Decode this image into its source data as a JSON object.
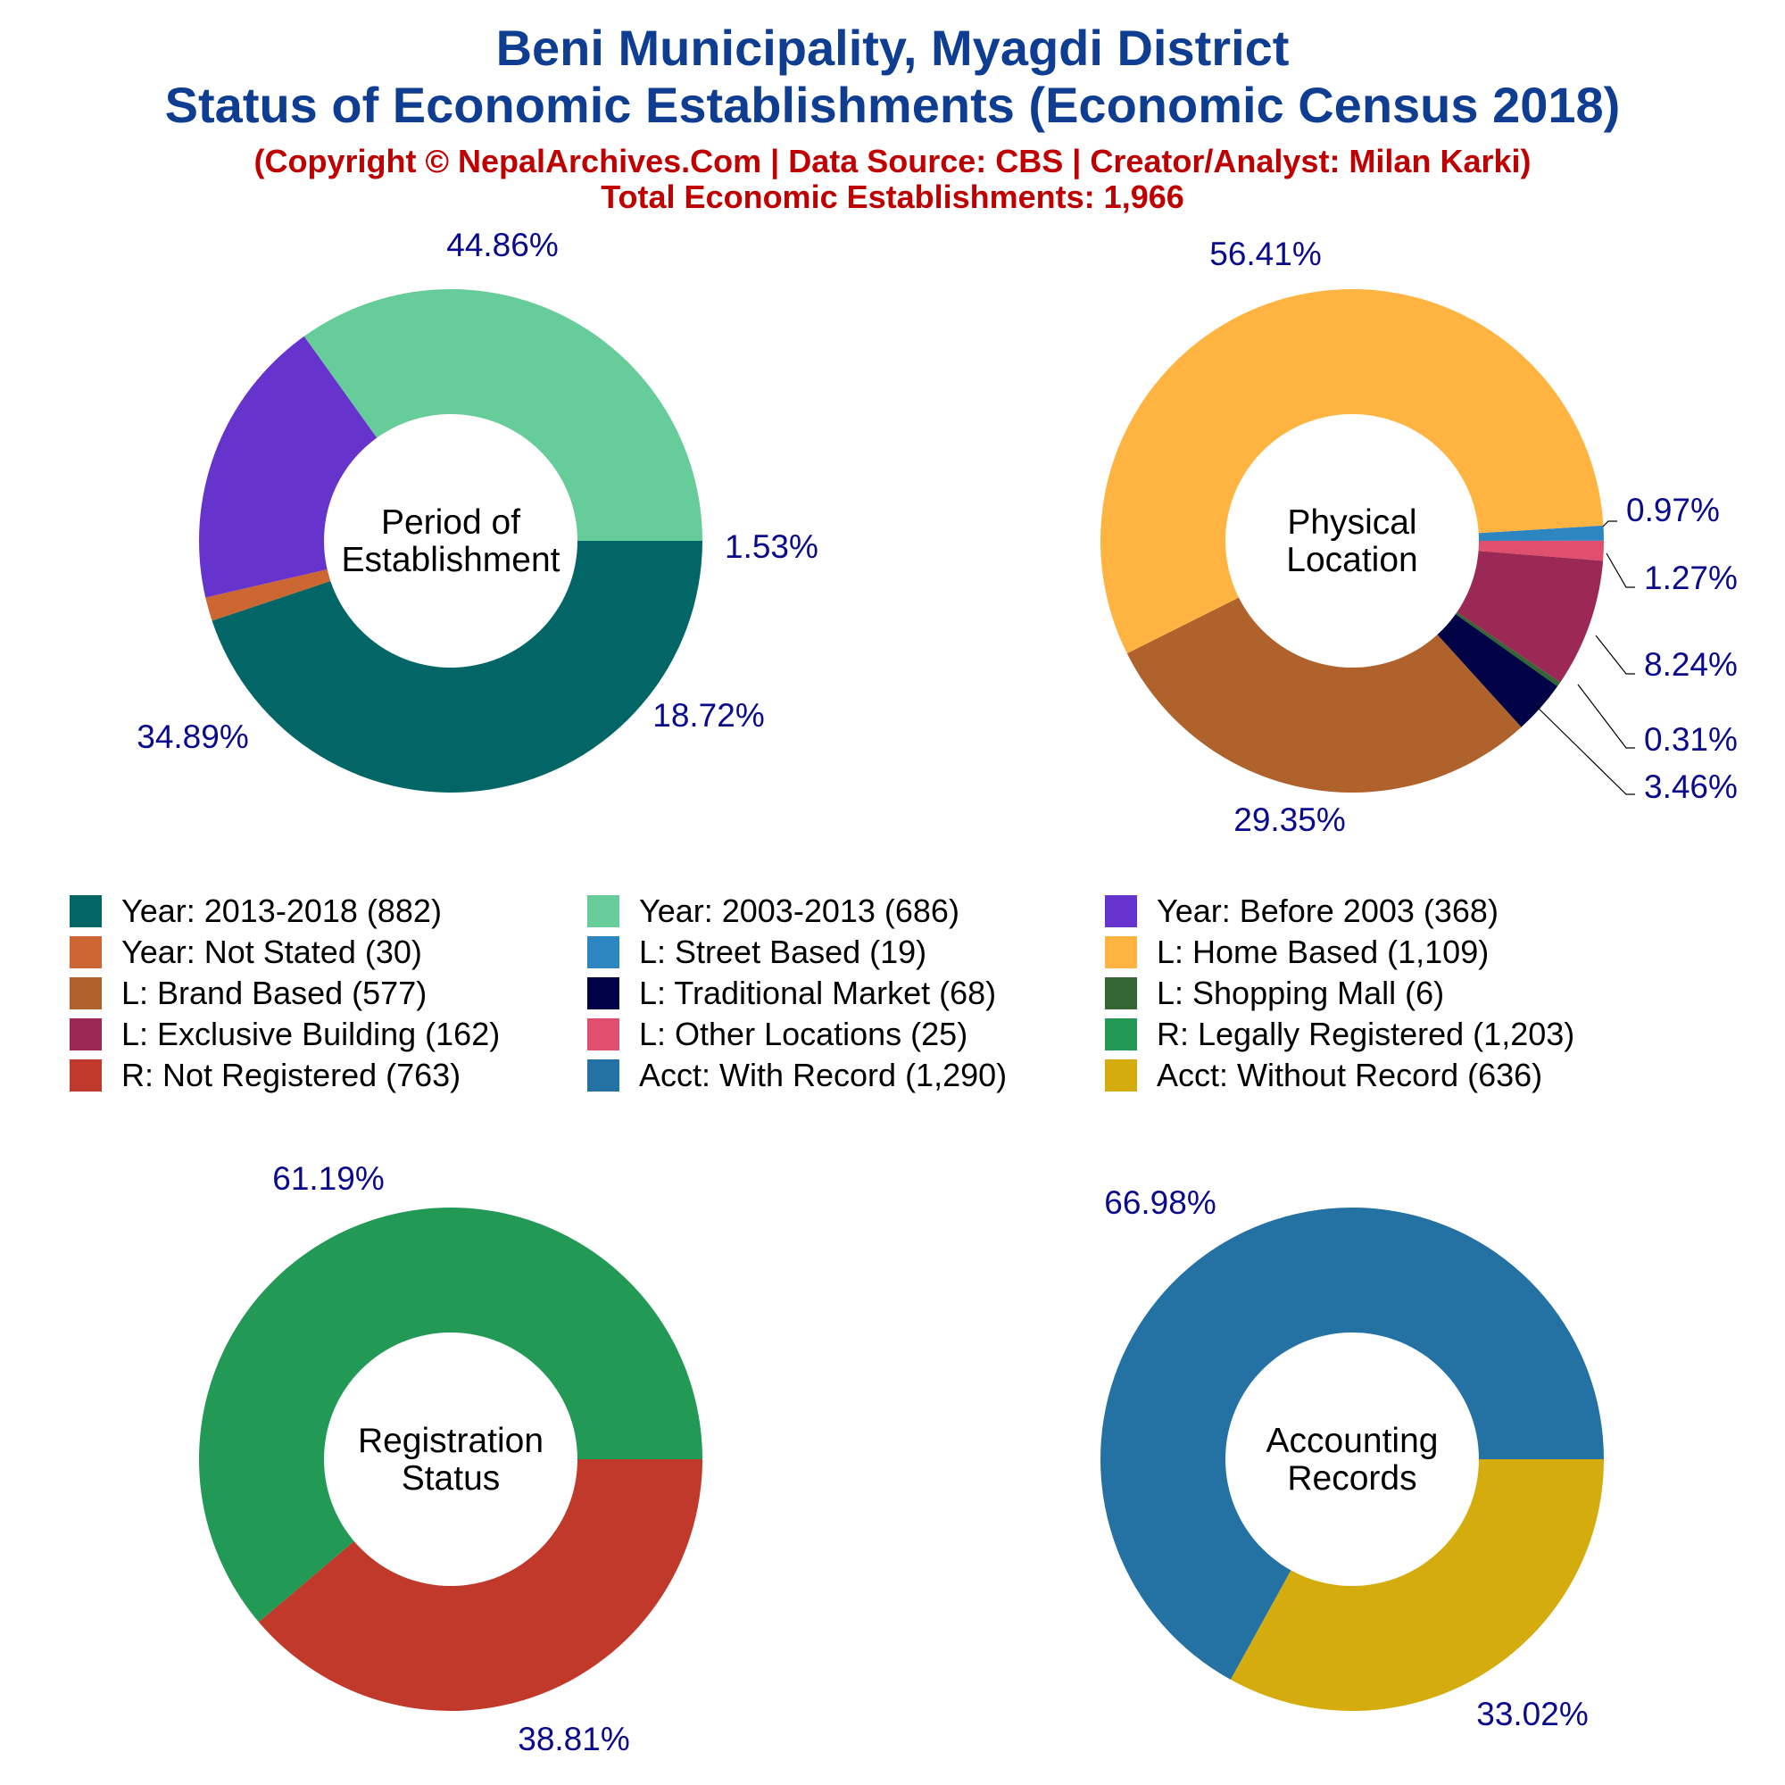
{
  "title_line1": "Beni Municipality, Myagdi District",
  "title_line2": "Status of Economic Establishments (Economic Census 2018)",
  "subtitle": "(Copyright © NepalArchives.Com | Data Source: CBS | Creator/Analyst: Milan Karki)",
  "total_line": "Total Economic Establishments: 1,966",
  "legend": [
    {
      "label": "Year: 2013-2018 (882)",
      "color": "#036666"
    },
    {
      "label": "Year: 2003-2013 (686)",
      "color": "#66cc99"
    },
    {
      "label": "Year: Before 2003 (368)",
      "color": "#6633cc"
    },
    {
      "label": "Year: Not Stated (30)",
      "color": "#cc6633"
    },
    {
      "label": "L: Street Based (19)",
      "color": "#2e86c1"
    },
    {
      "label": "L: Home Based (1,109)",
      "color": "#ffb340"
    },
    {
      "label": "L: Brand Based (577)",
      "color": "#b0622d"
    },
    {
      "label": "L: Traditional Market (68)",
      "color": "#020246"
    },
    {
      "label": "L: Shopping Mall (6)",
      "color": "#336633"
    },
    {
      "label": "L: Exclusive Building (162)",
      "color": "#9c2856"
    },
    {
      "label": "L: Other Locations (25)",
      "color": "#e0506e"
    },
    {
      "label": "R: Legally Registered (1,203)",
      "color": "#229954"
    },
    {
      "label": "R: Not Registered (763)",
      "color": "#c0392b"
    },
    {
      "label": "Acct: With Record (1,290)",
      "color": "#2471a3"
    },
    {
      "label": "Acct: Without Record (636)",
      "color": "#d4ac0d"
    }
  ],
  "chart_data": [
    {
      "type": "pie",
      "center_label": [
        "Period of",
        "Establishment"
      ],
      "slices": [
        {
          "name": "Year: 2013-2018",
          "value": 882,
          "label": "44.86%",
          "color": "#036666"
        },
        {
          "name": "Year: Not Stated",
          "value": 30,
          "label": "1.53%",
          "color": "#cc6633"
        },
        {
          "name": "Year: Before 2003",
          "value": 368,
          "label": "18.72%",
          "color": "#6633cc"
        },
        {
          "name": "Year: 2003-2013",
          "value": 686,
          "label": "34.89%",
          "color": "#66cc99"
        }
      ]
    },
    {
      "type": "pie",
      "center_label": [
        "Physical",
        "Location"
      ],
      "slices": [
        {
          "name": "L: Street Based",
          "value": 19,
          "label": "0.97%",
          "color": "#2e86c1"
        },
        {
          "name": "L: Other Locations",
          "value": 25,
          "label": "1.27%",
          "color": "#e0506e"
        },
        {
          "name": "L: Exclusive Building",
          "value": 162,
          "label": "8.24%",
          "color": "#9c2856"
        },
        {
          "name": "L: Shopping Mall",
          "value": 6,
          "label": "0.31%",
          "color": "#336633"
        },
        {
          "name": "L: Traditional Market",
          "value": 68,
          "label": "3.46%",
          "color": "#020246"
        },
        {
          "name": "L: Brand Based",
          "value": 577,
          "label": "29.35%",
          "color": "#b0622d"
        },
        {
          "name": "L: Home Based",
          "value": 1109,
          "label": "56.41%",
          "color": "#ffb340"
        }
      ]
    },
    {
      "type": "pie",
      "center_label": [
        "Registration",
        "Status"
      ],
      "slices": [
        {
          "name": "R: Not Registered",
          "value": 763,
          "label": "38.81%",
          "color": "#c0392b"
        },
        {
          "name": "R: Legally Registered",
          "value": 1203,
          "label": "61.19%",
          "color": "#229954"
        }
      ]
    },
    {
      "type": "pie",
      "center_label": [
        "Accounting",
        "Records"
      ],
      "slices": [
        {
          "name": "Acct: Without Record",
          "value": 636,
          "label": "33.02%",
          "color": "#d4ac0d"
        },
        {
          "name": "Acct: With Record",
          "value": 1290,
          "label": "66.98%",
          "color": "#2471a3"
        }
      ]
    }
  ]
}
